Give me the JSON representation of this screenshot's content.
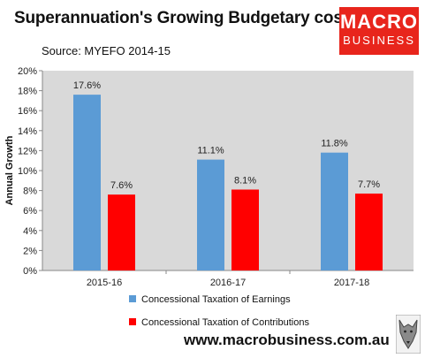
{
  "title": "Superannuation's Growing Budgetary cost",
  "source": "Source: MYEFO 2014-15",
  "logo": {
    "line1": "MACRO",
    "line2": "BUSINESS",
    "color": "#e8251c"
  },
  "website": "www.macrobusiness.com.au",
  "wolf_icon": "wolf-icon",
  "chart_data": {
    "type": "bar",
    "categories": [
      "2015-16",
      "2016-17",
      "2017-18"
    ],
    "series": [
      {
        "name": "Concessional Taxation of Earnings",
        "values": [
          17.6,
          11.1,
          11.8
        ],
        "labels": [
          "17.6%",
          "11.1%",
          "11.8%"
        ],
        "color": "#5b9bd5"
      },
      {
        "name": "Concessional Taxation of Contributions",
        "values": [
          7.6,
          8.1,
          7.7
        ],
        "labels": [
          "7.6%",
          "8.1%",
          "7.7%"
        ],
        "color": "#ff0000"
      }
    ],
    "ylabel": "Annual Growth",
    "ylim": [
      0,
      20
    ],
    "yticks": [
      "0%",
      "2%",
      "4%",
      "6%",
      "8%",
      "10%",
      "12%",
      "14%",
      "16%",
      "18%",
      "20%"
    ],
    "legend": "bottom",
    "grid": false,
    "plot_background": "#d9d9d9"
  }
}
